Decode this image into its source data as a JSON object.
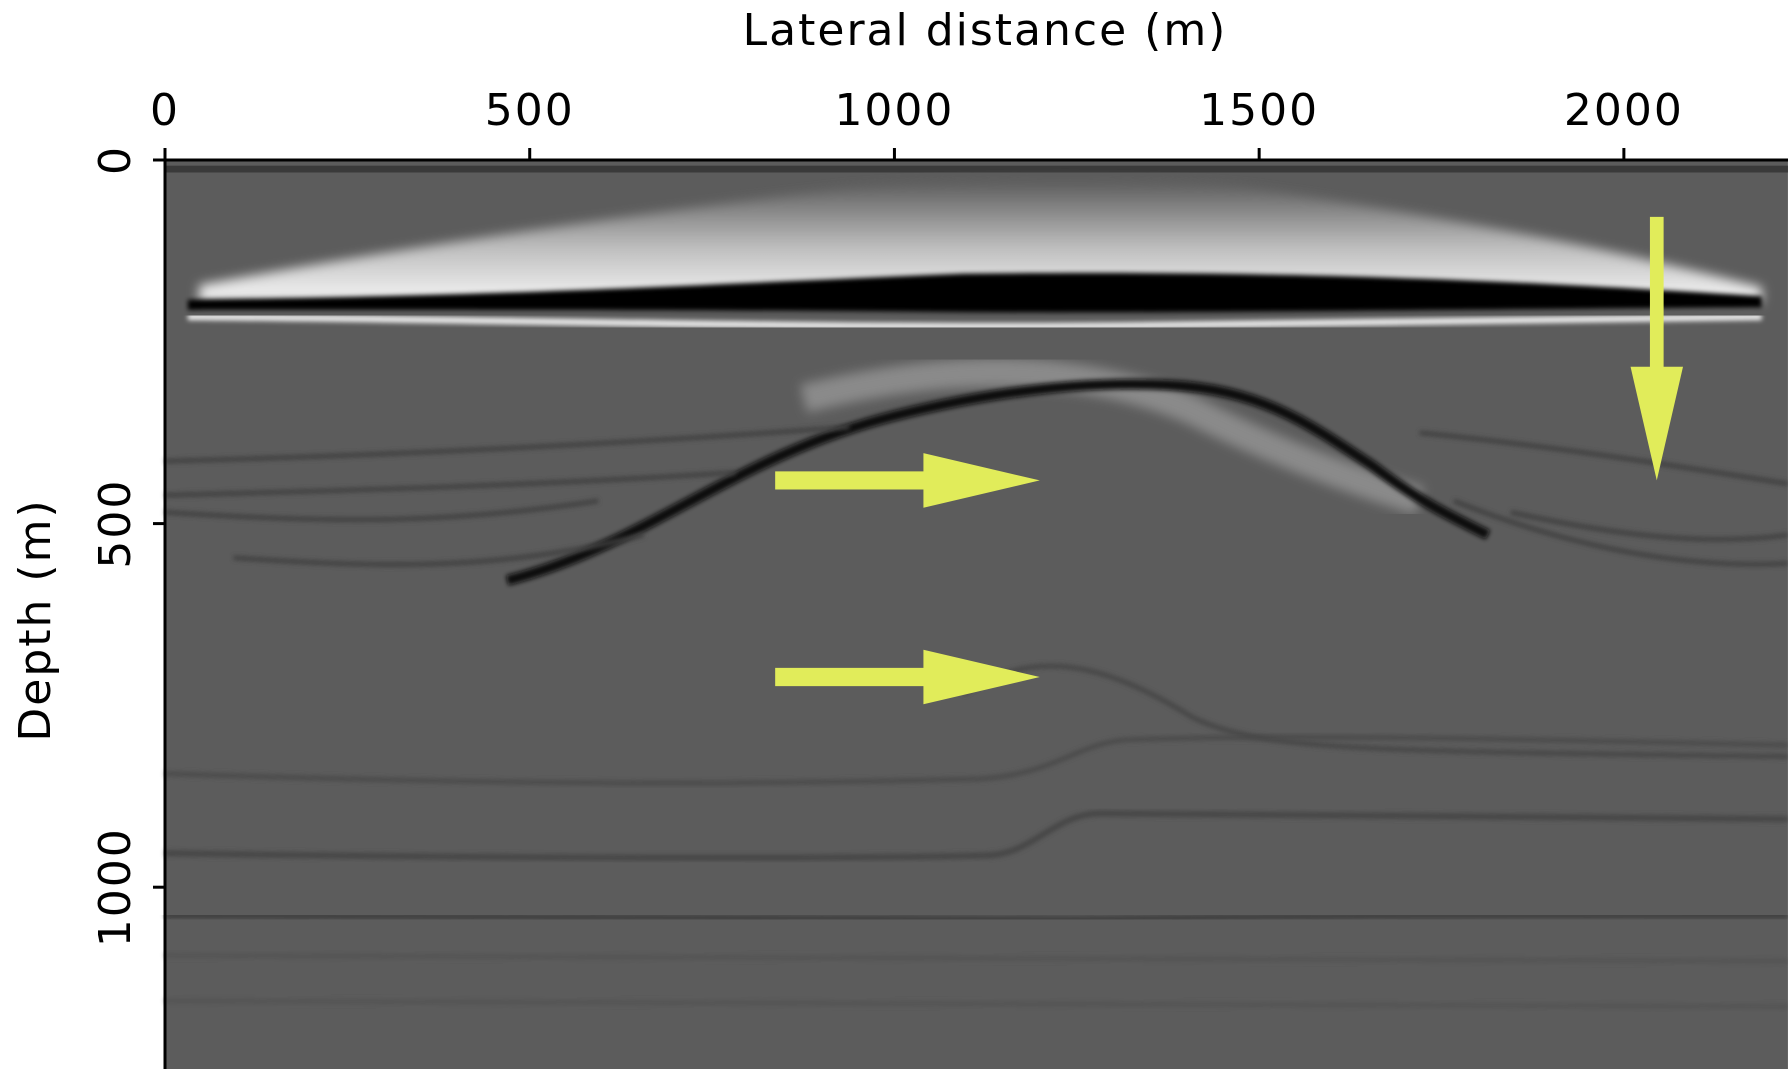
{
  "chart_data": {
    "type": "image",
    "xlabel": "Lateral distance (m)",
    "ylabel": "Depth (m)",
    "xlim": [
      0,
      2225
    ],
    "ylim": [
      0,
      1250
    ],
    "xticks": [
      0,
      500,
      1000,
      1500,
      2000
    ],
    "yticks": [
      0,
      500,
      1000
    ],
    "x_axis_position": "top",
    "y_inverted": true
  }
}
